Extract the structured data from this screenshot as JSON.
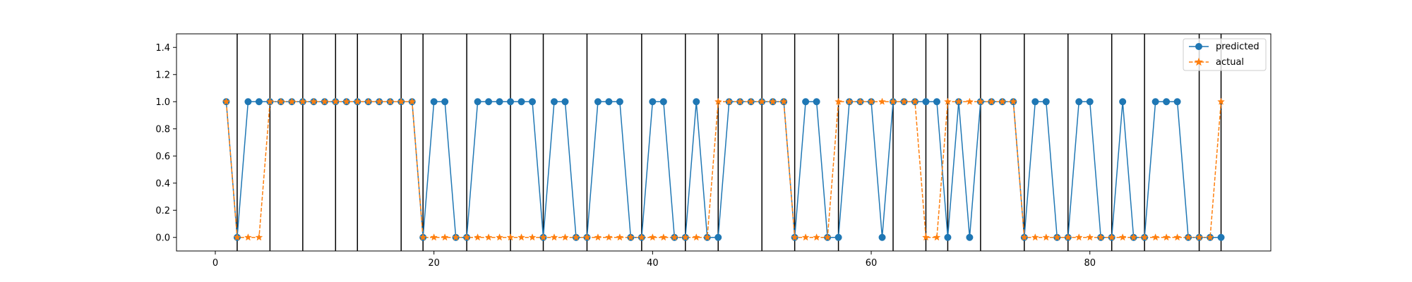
{
  "chart_data": {
    "type": "line",
    "x": [
      1,
      2,
      3,
      4,
      5,
      6,
      7,
      8,
      9,
      10,
      11,
      12,
      13,
      14,
      15,
      16,
      17,
      18,
      19,
      20,
      21,
      22,
      23,
      24,
      25,
      26,
      27,
      28,
      29,
      30,
      31,
      32,
      33,
      34,
      35,
      36,
      37,
      38,
      39,
      40,
      41,
      42,
      43,
      44,
      45,
      46,
      47,
      48,
      49,
      50,
      51,
      52,
      53,
      54,
      55,
      56,
      57,
      58,
      59,
      60,
      61,
      62,
      63,
      64,
      65,
      66,
      67,
      68,
      69,
      70,
      71,
      72,
      73,
      74,
      75,
      76,
      77,
      78,
      79,
      80,
      81,
      82,
      83,
      84,
      85,
      86,
      87,
      88,
      89,
      90,
      91,
      92
    ],
    "series": [
      {
        "name": "predicted",
        "color": "#1f77b4",
        "line_style": "solid",
        "marker": "circle",
        "values": [
          1,
          0,
          1,
          1,
          1,
          1,
          1,
          1,
          1,
          1,
          1,
          1,
          1,
          1,
          1,
          1,
          1,
          1,
          0,
          1,
          1,
          0,
          0,
          1,
          1,
          1,
          1,
          1,
          1,
          0,
          1,
          1,
          0,
          0,
          1,
          1,
          1,
          0,
          0,
          1,
          1,
          0,
          0,
          1,
          0,
          0,
          1,
          1,
          1,
          1,
          1,
          1,
          0,
          1,
          1,
          0,
          0,
          1,
          1,
          1,
          0,
          1,
          1,
          1,
          1,
          1,
          0,
          1,
          0,
          1,
          1,
          1,
          1,
          0,
          1,
          1,
          0,
          0,
          1,
          1,
          0,
          0,
          1,
          0,
          0,
          1,
          1,
          1,
          0,
          0,
          0,
          0
        ]
      },
      {
        "name": "actual",
        "color": "#ff7f0e",
        "line_style": "dashed",
        "marker": "star",
        "values": [
          1,
          0,
          0,
          0,
          1,
          1,
          1,
          1,
          1,
          1,
          1,
          1,
          1,
          1,
          1,
          1,
          1,
          1,
          0,
          0,
          0,
          0,
          0,
          0,
          0,
          0,
          0,
          0,
          0,
          0,
          0,
          0,
          0,
          0,
          0,
          0,
          0,
          0,
          0,
          0,
          0,
          0,
          0,
          0,
          0,
          1,
          1,
          1,
          1,
          1,
          1,
          1,
          0,
          0,
          0,
          0,
          1,
          1,
          1,
          1,
          1,
          1,
          1,
          1,
          0,
          0,
          1,
          1,
          1,
          1,
          1,
          1,
          1,
          0,
          0,
          0,
          0,
          0,
          0,
          0,
          0,
          0,
          0,
          0,
          0,
          0,
          0,
          0,
          0,
          0,
          0,
          1
        ]
      }
    ],
    "vlines": [
      2,
      5,
      8,
      11,
      13,
      17,
      19,
      23,
      27,
      30,
      34,
      39,
      43,
      46,
      50,
      53,
      57,
      62,
      65,
      67,
      70,
      74,
      78,
      82,
      85,
      90,
      92
    ],
    "x_ticks": [
      0,
      20,
      40,
      60,
      80
    ],
    "y_ticks": [
      0.0,
      0.2,
      0.4,
      0.6,
      0.8,
      1.0,
      1.2,
      1.4
    ],
    "x_tick_labels": [
      "0",
      "20",
      "40",
      "60",
      "80"
    ],
    "y_tick_labels": [
      "0.0",
      "0.2",
      "0.4",
      "0.6",
      "0.8",
      "1.0",
      "1.2",
      "1.4"
    ],
    "xlim": [
      -3.55,
      96.55
    ],
    "ylim": [
      -0.1,
      1.5
    ],
    "title": "",
    "xlabel": "",
    "ylabel": "",
    "grid": false,
    "legend_position": "top-right"
  }
}
